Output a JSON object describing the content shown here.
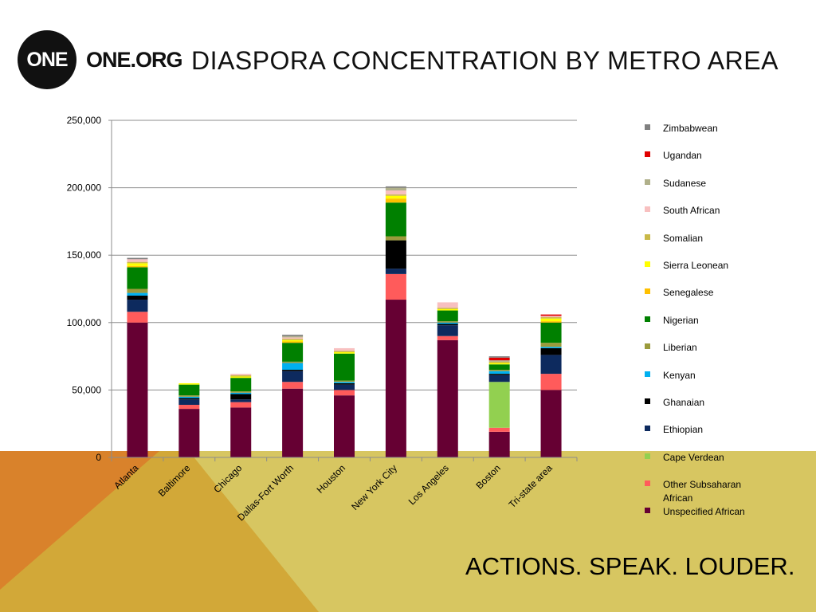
{
  "header": {
    "logo_mark": "ONE",
    "logo_text": "ONE.ORG",
    "title": "DIASPORA CONCENTRATION BY METRO AREA"
  },
  "footer": {
    "tagline": "ACTIONS. SPEAK. LOUDER."
  },
  "colors": {
    "background_orange": "#d9822b",
    "background_gold": "#d2a838",
    "background_olive": "#d7c661"
  },
  "chart_data": {
    "type": "bar",
    "stacked": true,
    "title": "",
    "xlabel": "",
    "ylabel": "",
    "ylim": [
      0,
      250000
    ],
    "yticks": [
      0,
      50000,
      100000,
      150000,
      200000,
      250000
    ],
    "ytick_labels": [
      "0",
      "50,000",
      "100,000",
      "150,000",
      "200,000",
      "250,000"
    ],
    "grid": true,
    "legend_position": "right",
    "categories": [
      "Atlanta",
      "Baltimore",
      "Chicago",
      "Dallas-Fort Worth",
      "Houston",
      "New York City",
      "Los Angeles",
      "Boston",
      "Tri-state area"
    ],
    "series": [
      {
        "name": "Unspecified African",
        "color": "#660033",
        "values": [
          100000,
          36000,
          37000,
          51000,
          46000,
          117000,
          87000,
          19000,
          50000
        ]
      },
      {
        "name": "Other Subsaharan African",
        "color": "#ff5b5b",
        "values": [
          8000,
          3000,
          4000,
          5000,
          4000,
          19000,
          3000,
          3000,
          12000
        ]
      },
      {
        "name": "Cape Verdean",
        "color": "#92d050",
        "values": [
          0,
          0,
          0,
          0,
          0,
          0,
          0,
          34000,
          0
        ]
      },
      {
        "name": "Ethiopian",
        "color": "#0d2a5e",
        "values": [
          9000,
          4000,
          2000,
          8000,
          4000,
          4000,
          8000,
          5000,
          14000
        ]
      },
      {
        "name": "Ghanaian",
        "color": "#000000",
        "values": [
          3000,
          1000,
          4000,
          1000,
          1000,
          21000,
          1000,
          1000,
          5000
        ]
      },
      {
        "name": "Kenyan",
        "color": "#00b0f0",
        "values": [
          2000,
          1000,
          1000,
          5000,
          1000,
          0,
          1000,
          2000,
          1000
        ]
      },
      {
        "name": "Liberian",
        "color": "#9b9b3c",
        "values": [
          3000,
          1000,
          1000,
          1000,
          1000,
          3000,
          1000,
          1000,
          3000
        ]
      },
      {
        "name": "Nigerian",
        "color": "#008000",
        "values": [
          16000,
          8000,
          10000,
          14000,
          20000,
          25000,
          8000,
          4000,
          15000
        ]
      },
      {
        "name": "Senegalese",
        "color": "#ffc000",
        "values": [
          1000,
          0,
          0,
          1000,
          0,
          3000,
          0,
          0,
          1000
        ]
      },
      {
        "name": "Sierra Leonean",
        "color": "#ffff00",
        "values": [
          2000,
          1000,
          1000,
          1000,
          1000,
          2000,
          1000,
          1000,
          2000
        ]
      },
      {
        "name": "Somalian",
        "color": "#c9b948",
        "values": [
          1000,
          0,
          1000,
          1000,
          1000,
          1000,
          1000,
          1000,
          1000
        ]
      },
      {
        "name": "South African",
        "color": "#f8c0c0",
        "values": [
          2000,
          0,
          1000,
          1000,
          2000,
          3000,
          4000,
          0,
          1000
        ]
      },
      {
        "name": "Sudanese",
        "color": "#b0b08a",
        "values": [
          0,
          0,
          0,
          1000,
          0,
          2000,
          0,
          1000,
          0
        ]
      },
      {
        "name": "Ugandan",
        "color": "#e00000",
        "values": [
          0,
          0,
          0,
          0,
          0,
          0,
          0,
          2000,
          1000
        ]
      },
      {
        "name": "Zimbabwean",
        "color": "#808080",
        "values": [
          1000,
          0,
          0,
          1000,
          0,
          1000,
          0,
          1000,
          0
        ]
      }
    ]
  }
}
